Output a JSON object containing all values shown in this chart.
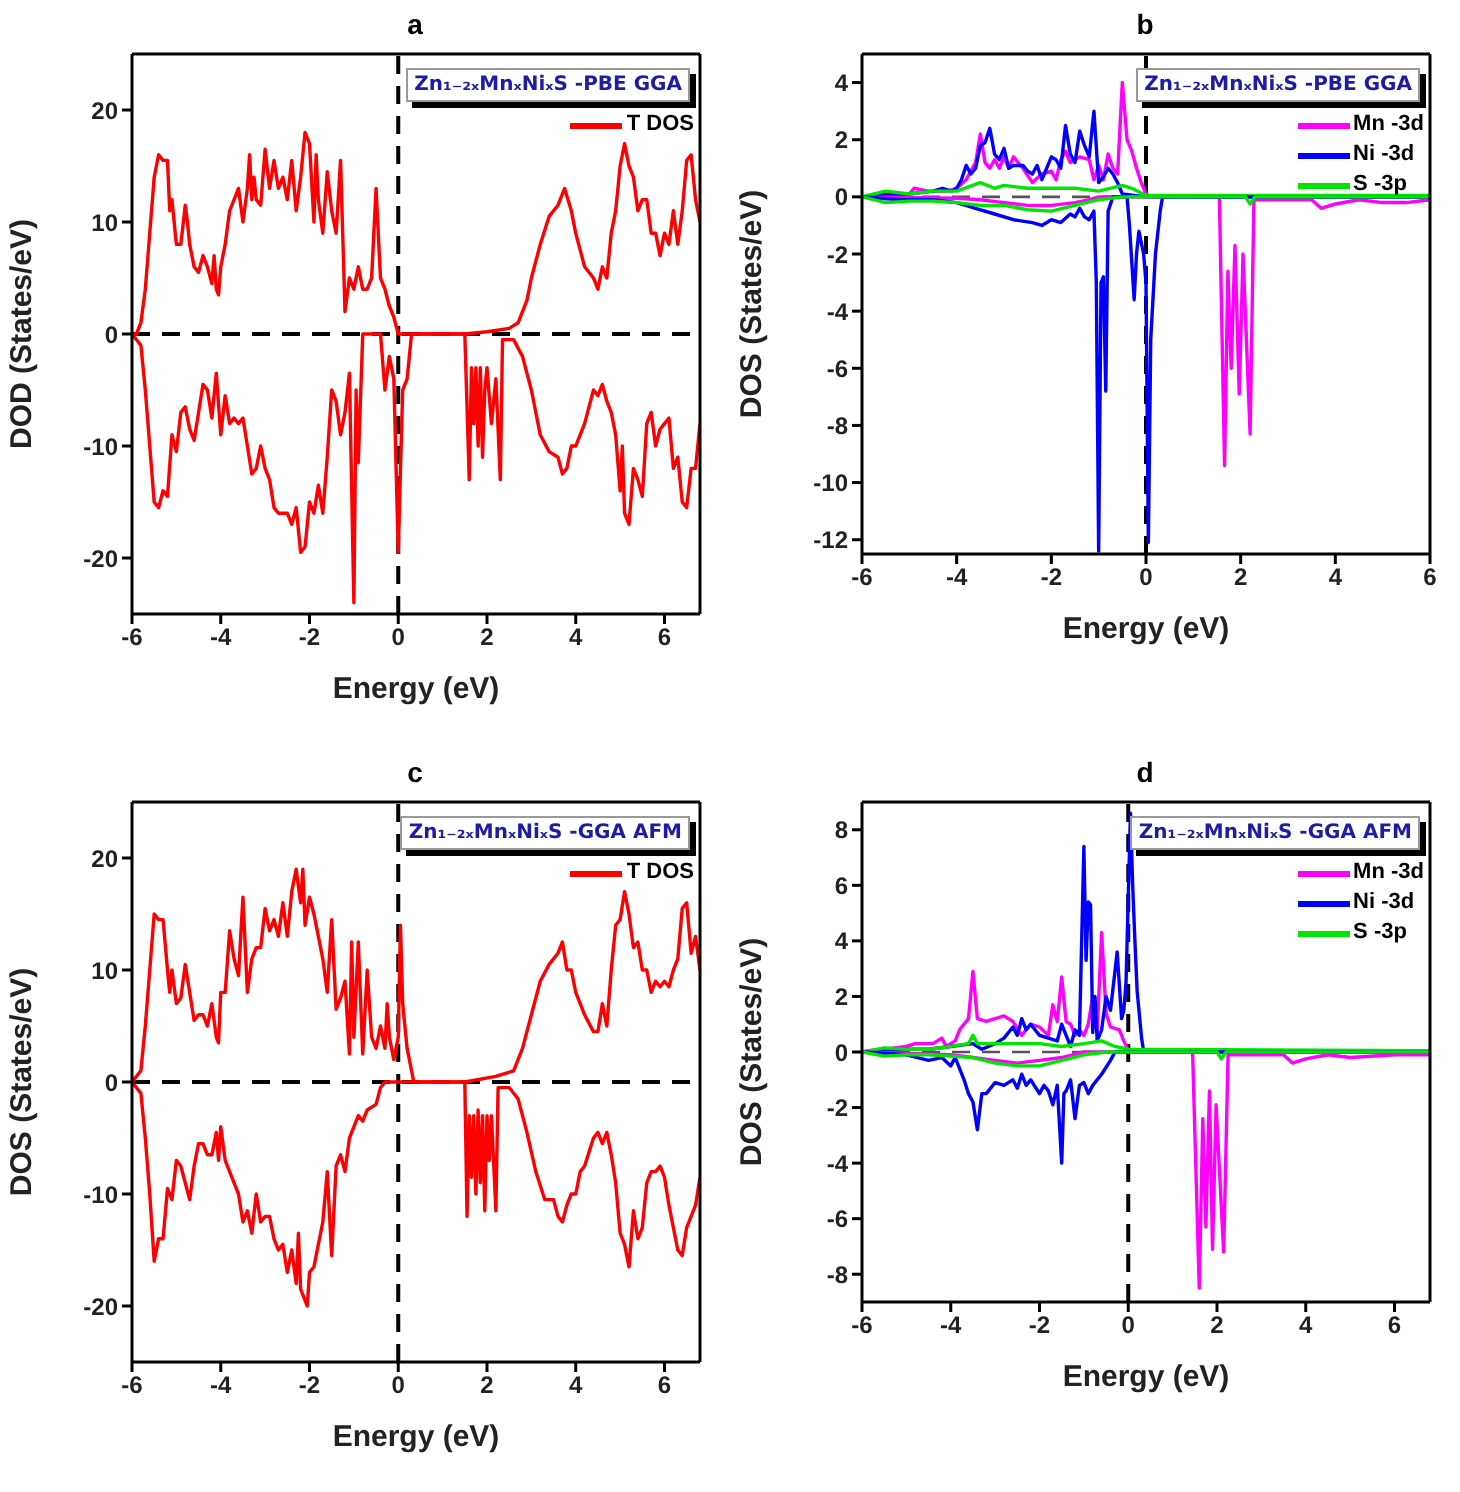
{
  "chart_data": [
    {
      "type": "line",
      "title": "a",
      "xlabel": "Energy (eV)",
      "ylabel": "DOD (States/eV)",
      "annotations": [
        "Zn₁₋₂ₓMnₓNiₓS -PBE GGA"
      ],
      "xlim": [
        -6,
        6.8
      ],
      "xticks": [
        -6,
        -4,
        -2,
        0,
        2,
        4,
        6
      ],
      "ylim": [
        -25,
        25
      ],
      "yticks": [
        -20,
        -10,
        0,
        10,
        20
      ],
      "legend": "top right",
      "ref_lines": [
        {
          "axis": "x",
          "value": 0,
          "color": "#000000",
          "line_style": "dashed"
        },
        {
          "axis": "y",
          "value": 0,
          "color": "#000000",
          "line_style": "dashed"
        }
      ],
      "series": [
        {
          "name": "T DOS",
          "color": "#ff0000",
          "x": [
            -6,
            -5.9,
            -5.8,
            -5.7,
            -5.6,
            -5.5,
            -5.4,
            -5.3,
            -5.2,
            -5.15,
            -5.1,
            -5.05,
            -5,
            -4.9,
            -4.8,
            -4.75,
            -4.7,
            -4.6,
            -4.5,
            -4.4,
            -4.3,
            -4.2,
            -4.15,
            -4.1,
            -4.05,
            -4,
            -3.9,
            -3.8,
            -3.7,
            -3.6,
            -3.5,
            -3.4,
            -3.35,
            -3.3,
            -3.25,
            -3.2,
            -3.1,
            -3,
            -2.9,
            -2.8,
            -2.7,
            -2.6,
            -2.5,
            -2.4,
            -2.3,
            -2.2,
            -2.1,
            -2,
            -1.9,
            -1.85,
            -1.8,
            -1.7,
            -1.6,
            -1.5,
            -1.4,
            -1.3,
            -1.2,
            -1.1,
            -1,
            -0.9,
            -0.8,
            -0.7,
            -0.6,
            -0.5,
            -0.4,
            -0.3,
            -0.2,
            -0.1,
            0,
            0.5,
            1.5,
            2,
            2.5,
            2.7,
            2.9,
            3,
            3.2,
            3.4,
            3.6,
            3.75,
            3.9,
            4,
            4.2,
            4.4,
            4.5,
            4.6,
            4.7,
            4.8,
            4.9,
            5,
            5.1,
            5.2,
            5.3,
            5.4,
            5.5,
            5.6,
            5.7,
            5.8,
            5.9,
            6,
            6.1,
            6.2,
            6.3,
            6.4,
            6.5,
            6.6,
            6.7,
            6.8
          ],
          "values": [
            0,
            0,
            1,
            4,
            9,
            14,
            16,
            15.5,
            15.5,
            11,
            12,
            10,
            8,
            8,
            11.5,
            10,
            8,
            6,
            5.5,
            7,
            6,
            4.5,
            7,
            4,
            3.5,
            6,
            8,
            11,
            12,
            13,
            10,
            13,
            16,
            12,
            14,
            12,
            11.5,
            16.5,
            13,
            15.5,
            13,
            14,
            12,
            15.5,
            11,
            14,
            18,
            17,
            10,
            16,
            12,
            9,
            14.5,
            11,
            9,
            15.5,
            2,
            5,
            4,
            6,
            4,
            4,
            5,
            13,
            5,
            4,
            2.5,
            1.5,
            0,
            0,
            0,
            0.2,
            0.5,
            1,
            3,
            5,
            8,
            10.5,
            11.5,
            13,
            11,
            9,
            6,
            5,
            4,
            6,
            5,
            9,
            11,
            15,
            17,
            15,
            14,
            11,
            12,
            12,
            9,
            9,
            7,
            9,
            8,
            11,
            8,
            11,
            15.5,
            16,
            12,
            10
          ]
        },
        {
          "color": "#ff0000",
          "x": [
            -6,
            -5.8,
            -5.7,
            -5.6,
            -5.5,
            -5.4,
            -5.3,
            -5.2,
            -5.1,
            -5,
            -4.9,
            -4.8,
            -4.7,
            -4.6,
            -4.5,
            -4.4,
            -4.3,
            -4.2,
            -4.1,
            -4,
            -3.9,
            -3.8,
            -3.7,
            -3.6,
            -3.5,
            -3.4,
            -3.3,
            -3.2,
            -3.1,
            -3,
            -2.9,
            -2.8,
            -2.7,
            -2.5,
            -2.4,
            -2.3,
            -2.2,
            -2.1,
            -2,
            -1.9,
            -1.8,
            -1.7,
            -1.6,
            -1.5,
            -1.4,
            -1.3,
            -1.2,
            -1.1,
            -1,
            -0.95,
            -0.9,
            -0.8,
            -0.4,
            -0.3,
            -0.2,
            -0.1,
            0,
            0.1,
            0.2,
            0.3,
            1.5,
            1.6,
            1.65,
            1.7,
            1.75,
            1.8,
            1.85,
            1.9,
            1.95,
            2,
            2.1,
            2.2,
            2.3,
            2.35,
            2.6,
            2.8,
            3,
            3.2,
            3.4,
            3.6,
            3.7,
            3.8,
            3.9,
            4,
            4.2,
            4.4,
            4.5,
            4.6,
            4.7,
            4.8,
            4.9,
            5,
            5.05,
            5.1,
            5.2,
            5.3,
            5.4,
            5.5,
            5.6,
            5.7,
            5.8,
            5.9,
            6,
            6.1,
            6.2,
            6.3,
            6.4,
            6.5,
            6.6,
            6.7,
            6.8
          ],
          "values": [
            0,
            -1,
            -5,
            -10,
            -15,
            -15.5,
            -14,
            -14.5,
            -9,
            -10.5,
            -7,
            -6.5,
            -8.5,
            -9.5,
            -7,
            -4.5,
            -5,
            -7.5,
            -3.5,
            -9,
            -5.5,
            -8,
            -7.5,
            -8,
            -7.5,
            -10,
            -12.5,
            -12,
            -10,
            -12,
            -13,
            -15.5,
            -16,
            -16,
            -17,
            -15.5,
            -19.5,
            -19,
            -15,
            -16,
            -13.5,
            -16,
            -11,
            -5,
            -6,
            -9,
            -7,
            -3.5,
            -24,
            -5,
            -11.5,
            0,
            0,
            -5,
            -2,
            -4,
            -19.5,
            -5,
            -4,
            0,
            0,
            -13,
            -3,
            -8,
            -3,
            -10,
            -3,
            -11,
            -5,
            -3,
            -8,
            -4,
            -13,
            -0.5,
            -0.5,
            -2,
            -5,
            -9,
            -10.5,
            -11,
            -12.5,
            -12,
            -10,
            -10,
            -8,
            -5,
            -5.5,
            -4.5,
            -6,
            -7,
            -9,
            -14,
            -10,
            -16,
            -17,
            -12,
            -13,
            -14.5,
            -8,
            -7,
            -10,
            -8.5,
            -8,
            -7.5,
            -12,
            -11,
            -15,
            -15.5,
            -12,
            -12,
            -8
          ]
        }
      ]
    },
    {
      "type": "line",
      "title": "b",
      "xlabel": "Energy (eV)",
      "ylabel": "DOS (States/eV)",
      "annotations": [
        "Zn₁₋₂ₓMnₓNiₓS -PBE GGA"
      ],
      "xlim": [
        -6,
        6
      ],
      "xticks": [
        -6,
        -4,
        -2,
        0,
        2,
        4,
        6
      ],
      "ylim": [
        -12.5,
        5
      ],
      "yticks": [
        -12,
        -10,
        -8,
        -6,
        -4,
        -2,
        0,
        2,
        4
      ],
      "legend": "top right",
      "ref_lines": [
        {
          "axis": "x",
          "value": 0,
          "color": "#000000",
          "line_style": "dashed"
        },
        {
          "axis": "y",
          "value": 0,
          "color": "#555555",
          "line_style": "dashed"
        }
      ],
      "series": [
        {
          "name": "Mn -3d",
          "color": "#ff00ff",
          "x": [
            -6,
            -5,
            -4.9,
            -4.6,
            -4.2,
            -4,
            -3.8,
            -3.6,
            -3.5,
            -3.4,
            -3.3,
            -3.2,
            -3.1,
            -3,
            -2.9,
            -2.8,
            -2.6,
            -2.4,
            -2.2,
            -2,
            -1.9,
            -1.8,
            -1.7,
            -1.6,
            -1.4,
            -1.2,
            -1.1,
            -1,
            -0.9,
            -0.8,
            -0.7,
            -0.6,
            -0.5,
            -0.4,
            -0.3,
            -0.2,
            -0.1,
            0,
            0.1,
            6
          ],
          "values": [
            0,
            0.1,
            0.3,
            0.2,
            0.2,
            0.3,
            0.6,
            1.2,
            2.2,
            1.2,
            1,
            1.3,
            1,
            1.4,
            1,
            1.4,
            1,
            0.5,
            0.8,
            0.9,
            0.6,
            1.3,
            1.6,
            1.2,
            1.4,
            1.3,
            0.6,
            1.1,
            0.6,
            1.5,
            1,
            0.8,
            4,
            2,
            1.6,
            1,
            0.5,
            0.1,
            0,
            0
          ]
        },
        {
          "name": "Ni -3d",
          "color": "#0000ff",
          "x": [
            -6,
            -5.5,
            -5,
            -4.5,
            -4.3,
            -4.1,
            -4,
            -3.9,
            -3.8,
            -3.7,
            -3.6,
            -3.5,
            -3.4,
            -3.3,
            -3.2,
            -3.1,
            -3,
            -2.9,
            -2.8,
            -2.6,
            -2.5,
            -2.4,
            -2.3,
            -2.2,
            -2.1,
            -2,
            -1.9,
            -1.8,
            -1.7,
            -1.6,
            -1.5,
            -1.4,
            -1.3,
            -1.2,
            -1.1,
            -1,
            -0.9,
            -0.8,
            -0.7,
            -0.6,
            -0.5,
            0,
            6
          ],
          "values": [
            0,
            0.1,
            0.1,
            0.2,
            0.3,
            0.2,
            0.3,
            0.6,
            1.1,
            0.8,
            1,
            1.8,
            1.9,
            2.4,
            1.5,
            1.3,
            1.7,
            1,
            1.1,
            1.1,
            0.9,
            0.8,
            1.1,
            0.6,
            1,
            1.4,
            1.3,
            1,
            2.5,
            1.5,
            1.2,
            2.3,
            1.8,
            1.4,
            3,
            0.5,
            0.7,
            1,
            0.8,
            0.5,
            0.1,
            0,
            0
          ]
        },
        {
          "name": "S -3p",
          "color": "#00e600",
          "x": [
            -6,
            -5.5,
            -5,
            -4.5,
            -4,
            -3.5,
            -3.2,
            -3,
            -2.5,
            -2,
            -1.5,
            -1,
            -0.5,
            -0.3,
            0,
            6
          ],
          "values": [
            0,
            0.2,
            0.1,
            0.2,
            0.2,
            0.5,
            0.3,
            0.4,
            0.3,
            0.3,
            0.3,
            0.2,
            0.4,
            0.3,
            0.05,
            0.05
          ]
        },
        {
          "color": "#ff00ff",
          "x": [
            -6,
            -4,
            -3.5,
            -3,
            -2.5,
            -2,
            -1.5,
            -1.2,
            -1,
            1.55,
            1.66,
            1.73,
            1.8,
            1.88,
            1.97,
            2.05,
            2.2,
            2.28,
            3.5,
            3.7,
            4,
            4.5,
            5,
            5.5,
            6
          ],
          "values": [
            0,
            -0.05,
            -0.1,
            -0.2,
            -0.3,
            -0.3,
            -0.2,
            -0.1,
            0,
            0,
            -9.4,
            -2.6,
            -6,
            -1.7,
            -6.9,
            -2,
            -8.3,
            -0.1,
            -0.1,
            -0.4,
            -0.25,
            -0.1,
            -0.2,
            -0.2,
            -0.1
          ]
        },
        {
          "color": "#0000ff",
          "x": [
            -6,
            -5.2,
            -4.5,
            -4,
            -3.6,
            -3.2,
            -2.8,
            -2.4,
            -2.2,
            -2,
            -1.8,
            -1.6,
            -1.5,
            -1.4,
            -1.3,
            -1.2,
            -1.1,
            -1.05,
            -1,
            -0.95,
            -0.9,
            -0.85,
            -0.8,
            -0.7,
            -0.4,
            -0.35,
            -0.25,
            -0.2,
            -0.15,
            -0.05,
            0,
            0.05,
            0.1,
            0.2,
            0.3,
            0.35,
            6
          ],
          "values": [
            0,
            -0.1,
            -0.1,
            -0.2,
            -0.4,
            -0.6,
            -0.8,
            -0.9,
            -1,
            -0.8,
            -0.9,
            -0.6,
            -0.7,
            -0.4,
            -0.7,
            -0.8,
            -0.5,
            -3,
            -12.4,
            -3,
            -2.8,
            -6.8,
            -0.5,
            0,
            0,
            -1,
            -3.6,
            -2,
            -1.2,
            -2,
            -3,
            -12.1,
            -5,
            -2,
            -0.5,
            0,
            0
          ]
        },
        {
          "color": "#00e600",
          "x": [
            -6,
            -5.5,
            -5,
            -4.5,
            -4,
            -3.5,
            -3,
            -2.5,
            -2,
            -1.5,
            -1,
            -0.5,
            2.1,
            2.2,
            2.3,
            6
          ],
          "values": [
            0,
            -0.2,
            -0.15,
            -0.15,
            -0.2,
            -0.3,
            -0.3,
            -0.45,
            -0.5,
            -0.3,
            -0.1,
            0,
            0,
            -0.25,
            0,
            0
          ]
        }
      ]
    },
    {
      "type": "line",
      "title": "c",
      "xlabel": "Energy (eV)",
      "ylabel": "DOS (States/eV)",
      "annotations": [
        "Zn₁₋₂ₓMnₓNiₓS -GGA AFM"
      ],
      "xlim": [
        -6,
        6.8
      ],
      "xticks": [
        -6,
        -4,
        -2,
        0,
        2,
        4,
        6
      ],
      "ylim": [
        -25,
        25
      ],
      "yticks": [
        -20,
        -10,
        0,
        10,
        20
      ],
      "legend": "top right",
      "ref_lines": [
        {
          "axis": "x",
          "value": 0,
          "color": "#000000",
          "line_style": "dashed"
        },
        {
          "axis": "y",
          "value": 0,
          "color": "#000000",
          "line_style": "dashed"
        }
      ],
      "series": [
        {
          "name": "T DOS",
          "color": "#ff0000",
          "x": [
            -6,
            -5.8,
            -5.7,
            -5.6,
            -5.5,
            -5.4,
            -5.3,
            -5.2,
            -5.15,
            -5.1,
            -5,
            -4.9,
            -4.8,
            -4.7,
            -4.6,
            -4.5,
            -4.4,
            -4.3,
            -4.2,
            -4.1,
            -4.05,
            -4,
            -3.9,
            -3.8,
            -3.7,
            -3.6,
            -3.5,
            -3.4,
            -3.3,
            -3.2,
            -3.1,
            -3,
            -2.9,
            -2.8,
            -2.7,
            -2.6,
            -2.5,
            -2.4,
            -2.3,
            -2.2,
            -2.15,
            -2.1,
            -2,
            -1.9,
            -1.8,
            -1.7,
            -1.6,
            -1.5,
            -1.4,
            -1.3,
            -1.2,
            -1.1,
            -1.05,
            -1,
            -0.9,
            -0.8,
            -0.7,
            -0.6,
            -0.5,
            -0.4,
            -0.3,
            -0.25,
            -0.2,
            -0.1,
            0,
            0.05,
            0.1,
            0.2,
            0.35,
            1.5,
            2.2,
            2.6,
            2.8,
            3,
            3.2,
            3.4,
            3.6,
            3.7,
            3.8,
            3.9,
            4,
            4.2,
            4.4,
            4.5,
            4.6,
            4.7,
            4.8,
            4.9,
            5,
            5.1,
            5.2,
            5.3,
            5.4,
            5.5,
            5.6,
            5.7,
            5.8,
            5.9,
            6,
            6.1,
            6.2,
            6.3,
            6.4,
            6.5,
            6.6,
            6.7,
            6.8
          ],
          "values": [
            0,
            1,
            5,
            10,
            15,
            14.5,
            14.5,
            10,
            8,
            10,
            7,
            7.5,
            10.5,
            8,
            5.5,
            6,
            6,
            5,
            7,
            4,
            3.5,
            8,
            8,
            13.5,
            11,
            9.5,
            16.5,
            8,
            11,
            12,
            12,
            15.5,
            13.5,
            14.5,
            13,
            16,
            13,
            17,
            19,
            16,
            19,
            14,
            16.5,
            15,
            13,
            11,
            8,
            14.5,
            6.5,
            7.5,
            9,
            2.5,
            12.5,
            4,
            12.5,
            2.5,
            10,
            4,
            3,
            5,
            3,
            7,
            4,
            2,
            4,
            14,
            7,
            3,
            0,
            0,
            0.5,
            1,
            3,
            6,
            9,
            10.5,
            11.5,
            12.5,
            10,
            10,
            8,
            6,
            4.5,
            4.5,
            7,
            5,
            10,
            14,
            14.5,
            17,
            15,
            12,
            12.5,
            10,
            10,
            8,
            9,
            8.5,
            9,
            8.5,
            10,
            11,
            15.5,
            16,
            11.5,
            13,
            10
          ]
        },
        {
          "color": "#ff0000",
          "x": [
            -6,
            -5.8,
            -5.7,
            -5.6,
            -5.5,
            -5.4,
            -5.3,
            -5.2,
            -5.1,
            -5,
            -4.9,
            -4.8,
            -4.7,
            -4.6,
            -4.5,
            -4.4,
            -4.3,
            -4.2,
            -4.1,
            -4.05,
            -4,
            -3.9,
            -3.8,
            -3.7,
            -3.6,
            -3.5,
            -3.4,
            -3.3,
            -3.2,
            -3.1,
            -3,
            -2.9,
            -2.8,
            -2.7,
            -2.6,
            -2.5,
            -2.4,
            -2.3,
            -2.25,
            -2.2,
            -2.1,
            -2.05,
            -2,
            -1.9,
            -1.8,
            -1.7,
            -1.6,
            -1.5,
            -1.4,
            -1.3,
            -1.2,
            -1.1,
            -1,
            -0.9,
            -0.8,
            -0.7,
            -0.5,
            -0.4,
            -0.3,
            1.5,
            1.55,
            1.6,
            1.65,
            1.7,
            1.75,
            1.8,
            1.85,
            1.9,
            1.95,
            2,
            2.05,
            2.1,
            2.2,
            2.25,
            2.5,
            2.7,
            2.9,
            3.1,
            3.3,
            3.5,
            3.6,
            3.7,
            3.8,
            3.9,
            4,
            4.1,
            4.2,
            4.4,
            4.5,
            4.6,
            4.7,
            4.8,
            4.9,
            5,
            5.1,
            5.2,
            5.3,
            5.4,
            5.5,
            5.6,
            5.7,
            5.8,
            5.9,
            6,
            6.1,
            6.2,
            6.3,
            6.4,
            6.5,
            6.6,
            6.7,
            6.8
          ],
          "values": [
            0,
            -1,
            -5,
            -10,
            -16,
            -14,
            -14,
            -9.5,
            -10.5,
            -7,
            -7.5,
            -9,
            -10.5,
            -7.5,
            -5.5,
            -5.5,
            -6.5,
            -6.5,
            -4.5,
            -7,
            -4,
            -7,
            -8,
            -9,
            -10,
            -12.5,
            -11.5,
            -13.5,
            -10,
            -12.5,
            -12,
            -12,
            -14,
            -15,
            -14.5,
            -17,
            -15,
            -18,
            -13.5,
            -18.5,
            -19.5,
            -20,
            -17,
            -16.5,
            -14.5,
            -12.5,
            -8,
            -15.5,
            -7.5,
            -6.5,
            -8,
            -5,
            -4,
            -3,
            -3.5,
            -2.5,
            -2,
            -0.5,
            0,
            0,
            -12,
            -3,
            -8.5,
            -3,
            -10,
            -2.5,
            -9,
            -3,
            -11.5,
            -3,
            -7,
            -3,
            -11.5,
            -0.5,
            -0.5,
            -1.5,
            -4.5,
            -8,
            -10.5,
            -10.5,
            -12,
            -12.5,
            -11,
            -10,
            -10,
            -8,
            -7.5,
            -5,
            -4.5,
            -5.5,
            -4.5,
            -6.5,
            -9,
            -13.5,
            -14.5,
            -16.5,
            -11.5,
            -14,
            -13,
            -9,
            -8,
            -8,
            -7.5,
            -8.5,
            -11,
            -13,
            -15,
            -15.5,
            -13,
            -12,
            -11,
            -8.5
          ]
        }
      ]
    },
    {
      "type": "line",
      "title": "d",
      "xlabel": "Energy (eV)",
      "ylabel": "DOS (States/eV)",
      "annotations": [
        "Zn₁₋₂ₓMnₓNiₓS -GGA AFM"
      ],
      "xlim": [
        -6,
        6.8
      ],
      "xticks": [
        -6,
        -4,
        -2,
        0,
        2,
        4,
        6
      ],
      "ylim": [
        -9,
        9
      ],
      "yticks": [
        -8,
        -6,
        -4,
        -2,
        0,
        2,
        4,
        6,
        8
      ],
      "legend": "top right",
      "ref_lines": [
        {
          "axis": "x",
          "value": 0,
          "color": "#000000",
          "line_style": "dashed"
        },
        {
          "axis": "y",
          "value": 0,
          "color": "#555555",
          "line_style": "dashed"
        }
      ],
      "series": [
        {
          "name": "Mn -3d",
          "color": "#ff00ff",
          "x": [
            -6,
            -5,
            -4.8,
            -4.4,
            -4.2,
            -4.1,
            -3.9,
            -3.8,
            -3.6,
            -3.5,
            -3.4,
            -3.2,
            -3,
            -2.8,
            -2.6,
            -2.4,
            -2.2,
            -2,
            -1.8,
            -1.7,
            -1.6,
            -1.5,
            -1.4,
            -1.3,
            -1.2,
            -1.1,
            -1,
            -0.9,
            -0.8,
            -0.7,
            -0.6,
            -0.5,
            -0.4,
            -0.2,
            -0.1,
            0,
            6.8
          ],
          "values": [
            0,
            0.2,
            0.3,
            0.3,
            0.5,
            0.2,
            0.4,
            0.8,
            1.2,
            2.9,
            1.2,
            1.1,
            1.2,
            1.3,
            1.1,
            0.6,
            1,
            0.9,
            0.6,
            1.7,
            1.1,
            2.7,
            1.1,
            1,
            0.6,
            0.8,
            0.6,
            1,
            2,
            0.7,
            4.3,
            1.4,
            0.9,
            0.8,
            0.4,
            0.05,
            0
          ]
        },
        {
          "name": "Ni -3d",
          "color": "#0000ff",
          "x": [
            -6,
            -5.5,
            -5,
            -4.5,
            -4,
            -3.5,
            -3.3,
            -3,
            -2.8,
            -2.6,
            -2.5,
            -2.4,
            -2.3,
            -2.2,
            -2,
            -1.8,
            -1.6,
            -1.5,
            -1.4,
            -1.3,
            -1.2,
            -1.1,
            -1,
            -0.95,
            -0.9,
            -0.85,
            -0.8,
            -0.75,
            -0.7,
            -0.6,
            -0.5,
            -0.4,
            -0.25,
            -0.15,
            -0.1,
            -0.05,
            0.05,
            0.1,
            0.15,
            0.2,
            0.3,
            0.35,
            6.8
          ],
          "values": [
            0,
            0.1,
            0.1,
            0.1,
            0.2,
            0.3,
            0.1,
            0.3,
            0.5,
            0.9,
            0.6,
            1.2,
            0.8,
            1,
            0.6,
            0.5,
            0.4,
            1,
            0.6,
            0.2,
            0.8,
            0.6,
            7.4,
            3.3,
            5.4,
            5.3,
            0.7,
            2,
            0.4,
            0.8,
            2,
            1.5,
            3.6,
            1.2,
            1.5,
            2.5,
            8.6,
            6,
            4,
            2.2,
            0.5,
            0,
            0
          ]
        },
        {
          "name": "S -3p",
          "color": "#00e600",
          "x": [
            -6,
            -5.5,
            -5,
            -4.5,
            -4,
            -3.6,
            -3.5,
            -3.4,
            -3,
            -2.5,
            -2,
            -1.5,
            -1,
            -0.6,
            -0.3,
            0,
            6.8
          ],
          "values": [
            0,
            0.15,
            0.1,
            0.1,
            0.2,
            0.3,
            0.6,
            0.3,
            0.3,
            0.3,
            0.3,
            0.2,
            0.3,
            0.4,
            0.2,
            0.1,
            0.05
          ]
        },
        {
          "color": "#ff00ff",
          "x": [
            -6,
            -4,
            -3.5,
            -3,
            -2.5,
            -2,
            -1.5,
            -1,
            1.45,
            1.6,
            1.68,
            1.75,
            1.83,
            1.9,
            1.98,
            2.15,
            2.25,
            3.5,
            3.7,
            4,
            4.5,
            5,
            6,
            6.8
          ],
          "values": [
            0,
            -0.1,
            -0.2,
            -0.3,
            -0.4,
            -0.3,
            -0.2,
            0,
            0,
            -8.5,
            -2.4,
            -6.3,
            -1.4,
            -7.1,
            -1.9,
            -7.2,
            -0.1,
            -0.1,
            -0.4,
            -0.25,
            -0.1,
            -0.2,
            -0.1,
            -0.1
          ]
        },
        {
          "color": "#0000ff",
          "x": [
            -6,
            -5,
            -4.5,
            -4.2,
            -4,
            -3.9,
            -3.8,
            -3.7,
            -3.6,
            -3.5,
            -3.4,
            -3.3,
            -3.2,
            -3,
            -2.8,
            -2.6,
            -2.5,
            -2.4,
            -2.3,
            -2.2,
            -2,
            -1.9,
            -1.8,
            -1.7,
            -1.6,
            -1.5,
            -1.45,
            -1.4,
            -1.3,
            -1.2,
            -1.1,
            -1,
            -0.9,
            -0.8,
            -0.6,
            -0.4,
            -0.3,
            6.8
          ],
          "values": [
            0,
            -0.1,
            -0.3,
            -0.2,
            -0.5,
            -0.2,
            -0.6,
            -1,
            -1.5,
            -1.8,
            -2.8,
            -1.5,
            -1.5,
            -1.1,
            -1.2,
            -1,
            -1.3,
            -0.8,
            -1.2,
            -1,
            -1.5,
            -1.2,
            -1.4,
            -1.9,
            -1.2,
            -4,
            -1.5,
            -1.4,
            -1,
            -2.4,
            -1.2,
            -1.1,
            -1.5,
            -1.2,
            -0.8,
            -0.3,
            0,
            0
          ]
        },
        {
          "color": "#00e600",
          "x": [
            -6,
            -5.5,
            -5,
            -4.5,
            -4,
            -3.5,
            -3,
            -2.5,
            -2,
            -1.5,
            -1,
            -0.5,
            2,
            2.1,
            2.2,
            6.8
          ],
          "values": [
            0,
            -0.15,
            -0.1,
            -0.1,
            -0.15,
            -0.2,
            -0.4,
            -0.5,
            -0.5,
            -0.3,
            -0.1,
            0,
            0,
            -0.25,
            0,
            0
          ]
        }
      ]
    }
  ]
}
